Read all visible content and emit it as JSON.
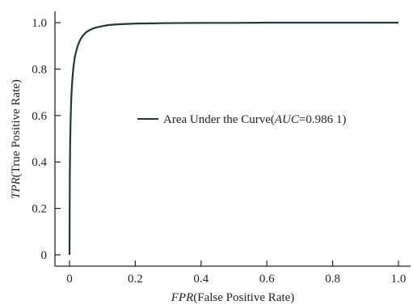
{
  "chart_data": {
    "type": "line",
    "xlabel": {
      "italic": "FPR",
      "rest": "(False Positive Rate)"
    },
    "ylabel": {
      "italic": "TPR",
      "rest": "(True Positive Rate)"
    },
    "xlim": [
      0,
      1.0
    ],
    "ylim": [
      0,
      1.0
    ],
    "xticks": [
      0,
      0.2,
      0.4,
      0.6,
      0.8,
      1.0
    ],
    "xtick_labels": [
      "0",
      "0.2",
      "0.4",
      "0.6",
      "0.8",
      "1.0"
    ],
    "yticks": [
      0,
      0.2,
      0.4,
      0.6,
      0.8,
      1.0
    ],
    "ytick_labels": [
      "0",
      "0.2",
      "0.4",
      "0.6",
      "0.8",
      "1.0"
    ],
    "grid": false,
    "legend_placement": "center-right",
    "series": [
      {
        "name": {
          "prefix": "Area Under the Curve(",
          "italic": "AUC",
          "suffix": "=0.986 1)"
        },
        "color": "#1f3a36",
        "x": [
          0,
          0.0005,
          0.001,
          0.002,
          0.003,
          0.005,
          0.007,
          0.01,
          0.013,
          0.016,
          0.02,
          0.025,
          0.03,
          0.035,
          0.04,
          0.05,
          0.06,
          0.07,
          0.08,
          0.1,
          0.12,
          0.15,
          0.2,
          0.25,
          0.3,
          0.4,
          0.5,
          0.6,
          0.8,
          1.0
        ],
        "y": [
          0.0,
          0.2,
          0.35,
          0.48,
          0.56,
          0.66,
          0.72,
          0.78,
          0.82,
          0.85,
          0.875,
          0.9,
          0.918,
          0.932,
          0.943,
          0.958,
          0.967,
          0.974,
          0.979,
          0.985,
          0.99,
          0.993,
          0.996,
          0.997,
          0.998,
          0.999,
          0.999,
          1.0,
          1.0,
          1.0
        ]
      }
    ]
  }
}
